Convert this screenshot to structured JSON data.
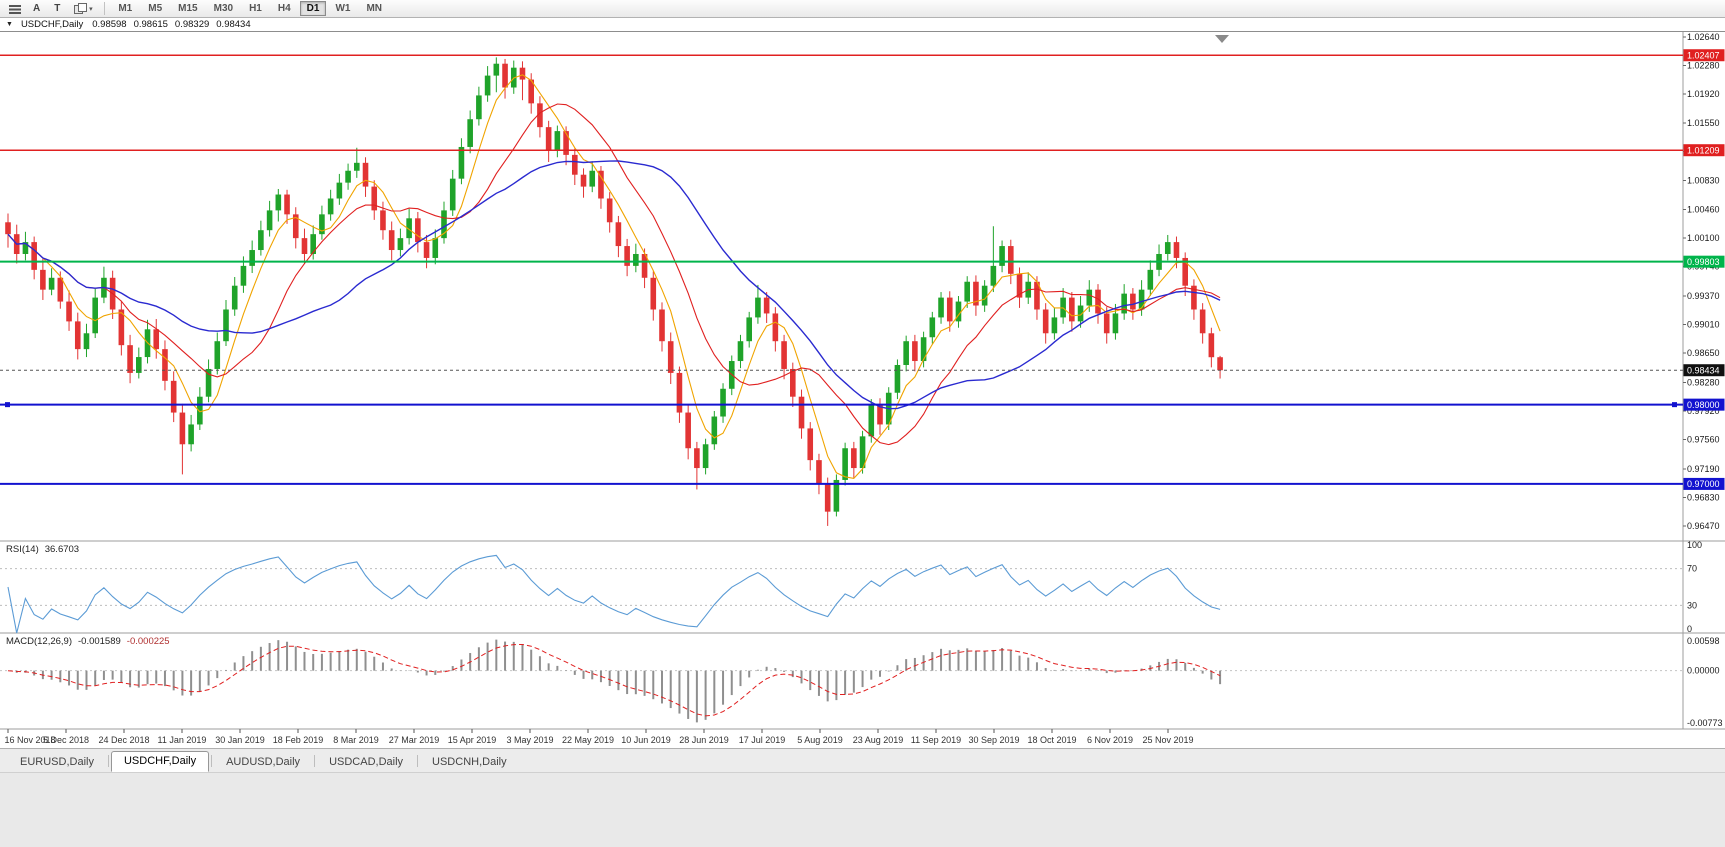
{
  "toolbar": {
    "left_buttons": [
      "A",
      "T"
    ],
    "timeframes": [
      {
        "label": "M1",
        "active": false
      },
      {
        "label": "M5",
        "active": false
      },
      {
        "label": "M15",
        "active": false
      },
      {
        "label": "M30",
        "active": false
      },
      {
        "label": "H1",
        "active": false
      },
      {
        "label": "H4",
        "active": false
      },
      {
        "label": "D1",
        "active": true
      },
      {
        "label": "W1",
        "active": false
      },
      {
        "label": "MN",
        "active": false
      }
    ]
  },
  "chart_data": {
    "type": "candlestick",
    "title": "USDCHF,Daily",
    "ohlc_display": {
      "open": "0.98598",
      "high": "0.98615",
      "low": "0.98329",
      "close": "0.98434"
    },
    "candle_up_color": "#1fa32a",
    "candle_down_color": "#e23434",
    "ylim": [
      0.9628,
      1.027
    ],
    "y_ticks": [
      "1.02640",
      "1.02280",
      "1.01920",
      "1.01550",
      "1.01190",
      "1.00830",
      "1.00460",
      "1.00100",
      "0.99740",
      "0.99370",
      "0.99010",
      "0.98650",
      "0.98280",
      "0.97920",
      "0.97560",
      "0.97190",
      "0.96830",
      "0.96470"
    ],
    "x_labels": [
      "16 Nov 2018",
      "5 Dec 2018",
      "24 Dec 2018",
      "11 Jan 2019",
      "30 Jan 2019",
      "18 Feb 2019",
      "8 Mar 2019",
      "27 Mar 2019",
      "15 Apr 2019",
      "3 May 2019",
      "22 May 2019",
      "10 Jun 2019",
      "28 Jun 2019",
      "17 Jul 2019",
      "5 Aug 2019",
      "23 Aug 2019",
      "11 Sep 2019",
      "30 Sep 2019",
      "18 Oct 2019",
      "6 Nov 2019",
      "25 Nov 2019"
    ],
    "overlays": {
      "moving_averages": [
        {
          "name": "fast-ma",
          "color": "#f0a400"
        },
        {
          "name": "medium-ma",
          "color": "#e02020"
        },
        {
          "name": "slow-ma",
          "color": "#2a2ad0"
        }
      ],
      "horizontal_lines": [
        {
          "price": 1.02407,
          "label": "1.02407",
          "color": "#e02020",
          "width": 1.5,
          "handles": false
        },
        {
          "price": 1.01209,
          "label": "1.01209",
          "color": "#e02020",
          "width": 1.5,
          "handles": false
        },
        {
          "price": 0.99803,
          "label": "0.99803",
          "color": "#00b44b",
          "width": 2,
          "handles": false
        },
        {
          "price": 0.98,
          "label": "0.98000",
          "color": "#1212cf",
          "width": 2,
          "handles": true
        },
        {
          "price": 0.97,
          "label": "0.97000",
          "color": "#1212cf",
          "width": 2,
          "handles": false
        }
      ],
      "current_price": {
        "value": 0.98434,
        "label": "0.98434",
        "box_color": "#101010"
      }
    },
    "indicators": [
      {
        "name": "RSI(14)",
        "value": "36.6703",
        "color": "#5b9bd5",
        "levels": [
          70,
          30
        ],
        "axis_labels": [
          "100",
          "70",
          "30",
          "0"
        ]
      },
      {
        "name": "MACD(12,26,9)",
        "values": [
          "-0.001589",
          "-0.000225"
        ],
        "hist_color": "#8f8f8f",
        "signal_color": "#e02020",
        "axis_labels": [
          "0.00598",
          "0.00000",
          "-0.00773"
        ]
      }
    ],
    "ohlc": [
      [
        1.003,
        1.0041,
        0.9998,
        1.0015
      ],
      [
        1.0015,
        1.0027,
        0.9978,
        0.999
      ],
      [
        0.999,
        1.0018,
        0.9982,
        1.0005
      ],
      [
        1.0005,
        1.0012,
        0.9958,
        0.997
      ],
      [
        0.997,
        0.9984,
        0.9932,
        0.9945
      ],
      [
        0.9945,
        0.9972,
        0.9938,
        0.996
      ],
      [
        0.996,
        0.9968,
        0.9921,
        0.993
      ],
      [
        0.993,
        0.9944,
        0.9893,
        0.9905
      ],
      [
        0.9905,
        0.9916,
        0.9857,
        0.987
      ],
      [
        0.987,
        0.9902,
        0.986,
        0.989
      ],
      [
        0.989,
        0.9946,
        0.9884,
        0.9935
      ],
      [
        0.9935,
        0.9974,
        0.9928,
        0.996
      ],
      [
        0.996,
        0.9969,
        0.9908,
        0.992
      ],
      [
        0.992,
        0.9931,
        0.9862,
        0.9875
      ],
      [
        0.9875,
        0.9888,
        0.9827,
        0.984
      ],
      [
        0.984,
        0.9872,
        0.9833,
        0.986
      ],
      [
        0.986,
        0.9907,
        0.9852,
        0.9895
      ],
      [
        0.9895,
        0.9908,
        0.9858,
        0.987
      ],
      [
        0.987,
        0.9881,
        0.9818,
        0.983
      ],
      [
        0.983,
        0.9842,
        0.9778,
        0.979
      ],
      [
        0.979,
        0.9801,
        0.9712,
        0.975
      ],
      [
        0.975,
        0.9787,
        0.9741,
        0.9775
      ],
      [
        0.9775,
        0.9822,
        0.9768,
        0.981
      ],
      [
        0.981,
        0.9857,
        0.9803,
        0.9845
      ],
      [
        0.9845,
        0.9891,
        0.9838,
        0.988
      ],
      [
        0.988,
        0.9932,
        0.9874,
        0.992
      ],
      [
        0.992,
        0.9961,
        0.9912,
        0.995
      ],
      [
        0.995,
        0.9987,
        0.9941,
        0.9975
      ],
      [
        0.9975,
        1.0007,
        0.9966,
        0.9995
      ],
      [
        0.9995,
        1.0032,
        0.9988,
        1.002
      ],
      [
        1.002,
        1.0057,
        1.0012,
        1.0045
      ],
      [
        1.0045,
        1.0072,
        1.0031,
        1.0065
      ],
      [
        1.0065,
        1.0071,
        1.0028,
        1.004
      ],
      [
        1.004,
        1.0049,
        0.9997,
        1.001
      ],
      [
        1.001,
        1.0022,
        0.9978,
        0.999
      ],
      [
        0.999,
        1.0026,
        0.9983,
        1.0015
      ],
      [
        1.0015,
        1.0051,
        1.0008,
        1.004
      ],
      [
        1.004,
        1.0071,
        1.0032,
        1.006
      ],
      [
        1.006,
        1.0091,
        1.0052,
        1.008
      ],
      [
        1.008,
        1.0104,
        1.0071,
        1.0095
      ],
      [
        1.0095,
        1.0124,
        1.0086,
        1.0105
      ],
      [
        1.0105,
        1.0112,
        1.0062,
        1.0075
      ],
      [
        1.0075,
        1.0083,
        1.0033,
        1.0045
      ],
      [
        1.0045,
        1.0056,
        1.0008,
        1.002
      ],
      [
        1.002,
        1.0031,
        0.9982,
        0.9995
      ],
      [
        0.9995,
        1.0022,
        0.9987,
        1.001
      ],
      [
        1.001,
        1.0047,
        1.0002,
        1.0035
      ],
      [
        1.0035,
        1.0043,
        0.9992,
        1.0005
      ],
      [
        1.0005,
        1.0014,
        0.9972,
        0.9985
      ],
      [
        0.9985,
        1.0021,
        0.9977,
        1.001
      ],
      [
        1.001,
        1.0056,
        1.0003,
        1.0045
      ],
      [
        1.0045,
        1.0096,
        1.0038,
        1.0085
      ],
      [
        1.0085,
        1.0136,
        1.0078,
        1.0125
      ],
      [
        1.0125,
        1.0171,
        1.0117,
        1.016
      ],
      [
        1.016,
        1.0201,
        1.0152,
        1.019
      ],
      [
        1.019,
        1.0227,
        1.0182,
        1.0215
      ],
      [
        1.0215,
        1.0238,
        1.0194,
        1.023
      ],
      [
        1.023,
        1.0236,
        1.0186,
        1.02
      ],
      [
        1.02,
        1.0234,
        1.0192,
        1.0225
      ],
      [
        1.0225,
        1.0233,
        1.0184,
        1.021
      ],
      [
        1.021,
        1.0218,
        1.0167,
        1.018
      ],
      [
        1.018,
        1.0189,
        1.0137,
        1.015
      ],
      [
        1.015,
        1.0158,
        1.0106,
        1.012
      ],
      [
        1.012,
        1.0152,
        1.0112,
        1.0145
      ],
      [
        1.0145,
        1.0151,
        1.0102,
        1.0115
      ],
      [
        1.0115,
        1.0123,
        1.0077,
        1.009
      ],
      [
        1.009,
        1.0098,
        1.0061,
        1.0075
      ],
      [
        1.0075,
        1.0107,
        1.0068,
        1.0095
      ],
      [
        1.0095,
        1.0101,
        1.0047,
        1.006
      ],
      [
        1.006,
        1.0068,
        1.0017,
        1.003
      ],
      [
        1.003,
        1.0038,
        0.9986,
        1.0
      ],
      [
        1.0,
        1.0009,
        0.9962,
        0.9975
      ],
      [
        0.9975,
        1.0003,
        0.9967,
        0.999
      ],
      [
        0.999,
        0.9997,
        0.9947,
        0.996
      ],
      [
        0.996,
        0.9968,
        0.9906,
        0.992
      ],
      [
        0.992,
        0.9929,
        0.9867,
        0.988
      ],
      [
        0.988,
        0.9891,
        0.9826,
        0.984
      ],
      [
        0.984,
        0.9848,
        0.9777,
        0.979
      ],
      [
        0.979,
        0.9799,
        0.9731,
        0.9745
      ],
      [
        0.9745,
        0.9753,
        0.9693,
        0.972
      ],
      [
        0.972,
        0.9757,
        0.9712,
        0.975
      ],
      [
        0.975,
        0.9792,
        0.9743,
        0.9785
      ],
      [
        0.9785,
        0.9827,
        0.9777,
        0.982
      ],
      [
        0.982,
        0.9862,
        0.9812,
        0.9855
      ],
      [
        0.9855,
        0.9888,
        0.9846,
        0.988
      ],
      [
        0.988,
        0.9917,
        0.9872,
        0.991
      ],
      [
        0.991,
        0.9951,
        0.9902,
        0.9935
      ],
      [
        0.9935,
        0.9942,
        0.9903,
        0.9915
      ],
      [
        0.9915,
        0.9923,
        0.9867,
        0.988
      ],
      [
        0.988,
        0.9888,
        0.9832,
        0.9845
      ],
      [
        0.9845,
        0.9853,
        0.9797,
        0.981
      ],
      [
        0.981,
        0.9819,
        0.9757,
        0.977
      ],
      [
        0.977,
        0.9778,
        0.9717,
        0.973
      ],
      [
        0.973,
        0.9738,
        0.9687,
        0.97
      ],
      [
        0.97,
        0.9708,
        0.9647,
        0.9665
      ],
      [
        0.9665,
        0.9712,
        0.9659,
        0.9705
      ],
      [
        0.9705,
        0.9752,
        0.9698,
        0.9745
      ],
      [
        0.9745,
        0.9753,
        0.9707,
        0.972
      ],
      [
        0.972,
        0.9767,
        0.9713,
        0.976
      ],
      [
        0.976,
        0.9807,
        0.9752,
        0.98
      ],
      [
        0.98,
        0.9808,
        0.9762,
        0.9775
      ],
      [
        0.9775,
        0.9822,
        0.9768,
        0.9815
      ],
      [
        0.9815,
        0.9857,
        0.9807,
        0.985
      ],
      [
        0.985,
        0.9887,
        0.9842,
        0.988
      ],
      [
        0.988,
        0.9888,
        0.9842,
        0.9855
      ],
      [
        0.9855,
        0.9892,
        0.9847,
        0.9885
      ],
      [
        0.9885,
        0.9917,
        0.9877,
        0.991
      ],
      [
        0.991,
        0.9942,
        0.9902,
        0.9935
      ],
      [
        0.9935,
        0.9943,
        0.9892,
        0.9905
      ],
      [
        0.9905,
        0.9937,
        0.9897,
        0.993
      ],
      [
        0.993,
        0.9962,
        0.9922,
        0.9955
      ],
      [
        0.9955,
        0.9963,
        0.9912,
        0.9925
      ],
      [
        0.9925,
        0.9957,
        0.9917,
        0.995
      ],
      [
        0.995,
        1.0025,
        0.9942,
        0.9975
      ],
      [
        0.9975,
        1.0007,
        0.9967,
        1.0
      ],
      [
        1.0,
        1.0008,
        0.9952,
        0.9965
      ],
      [
        0.9965,
        0.9973,
        0.9922,
        0.9935
      ],
      [
        0.9935,
        0.9967,
        0.9927,
        0.9955
      ],
      [
        0.9955,
        0.9962,
        0.9907,
        0.992
      ],
      [
        0.992,
        0.9928,
        0.9877,
        0.989
      ],
      [
        0.989,
        0.9922,
        0.9882,
        0.991
      ],
      [
        0.991,
        0.9947,
        0.9902,
        0.9935
      ],
      [
        0.9935,
        0.9942,
        0.9892,
        0.9905
      ],
      [
        0.9905,
        0.9937,
        0.9897,
        0.9925
      ],
      [
        0.9925,
        0.9957,
        0.9917,
        0.9945
      ],
      [
        0.9945,
        0.9952,
        0.9902,
        0.9915
      ],
      [
        0.9915,
        0.9923,
        0.9877,
        0.989
      ],
      [
        0.989,
        0.9927,
        0.9882,
        0.9915
      ],
      [
        0.9915,
        0.9952,
        0.9907,
        0.994
      ],
      [
        0.994,
        0.9947,
        0.9907,
        0.992
      ],
      [
        0.992,
        0.9957,
        0.9912,
        0.9945
      ],
      [
        0.9945,
        0.9982,
        0.9937,
        0.997
      ],
      [
        0.997,
        1.0002,
        0.9962,
        0.999
      ],
      [
        0.999,
        1.0014,
        0.9982,
        1.0005
      ],
      [
        1.0005,
        1.0012,
        0.9972,
        0.9985
      ],
      [
        0.9985,
        0.9992,
        0.9937,
        0.995
      ],
      [
        0.995,
        0.9958,
        0.9907,
        0.992
      ],
      [
        0.992,
        0.9928,
        0.9877,
        0.989
      ],
      [
        0.989,
        0.9897,
        0.9847,
        0.98598
      ],
      [
        0.98598,
        0.98615,
        0.98329,
        0.98434
      ]
    ]
  },
  "tab_bar": {
    "tabs": [
      {
        "label": "EURUSD,Daily",
        "active": false
      },
      {
        "label": "USDCHF,Daily",
        "active": true
      },
      {
        "label": "AUDUSD,Daily",
        "active": false
      },
      {
        "label": "USDCAD,Daily",
        "active": false
      },
      {
        "label": "USDCNH,Daily",
        "active": false
      }
    ]
  }
}
